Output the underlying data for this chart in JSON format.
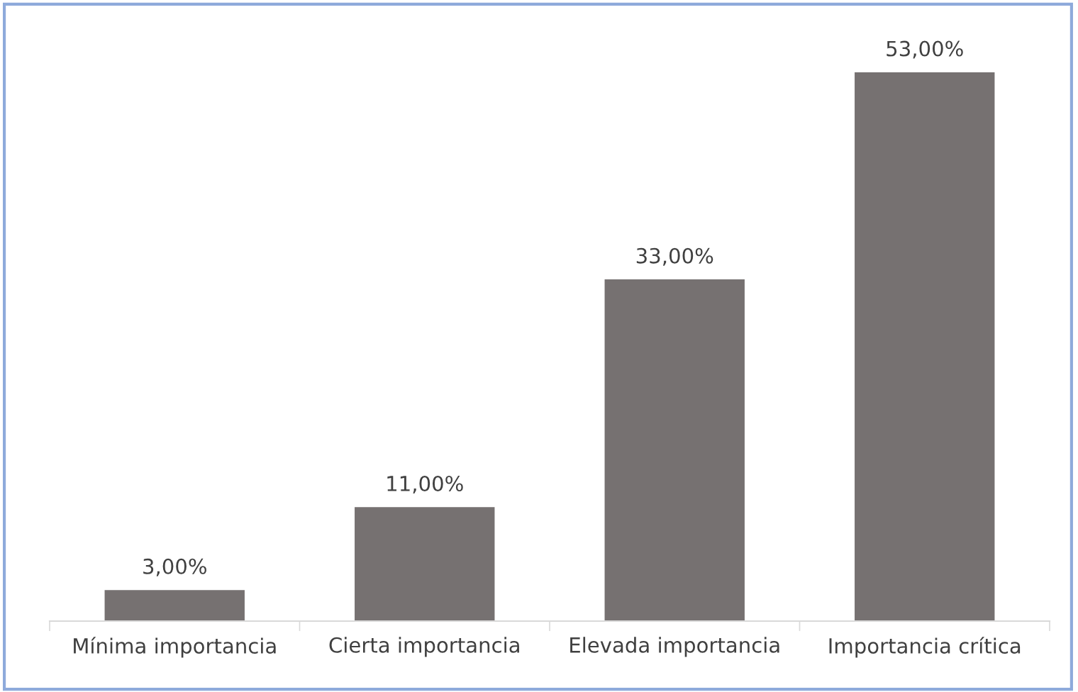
{
  "chart_data": {
    "type": "bar",
    "categories": [
      "Mínima importancia",
      "Cierta importancia",
      "Elevada importancia",
      "Importancia crítica"
    ],
    "values": [
      3,
      11,
      33,
      53
    ],
    "value_labels": [
      "3,00%",
      "11,00%",
      "33,00%",
      "53,00%"
    ],
    "color": "#767171"
  }
}
